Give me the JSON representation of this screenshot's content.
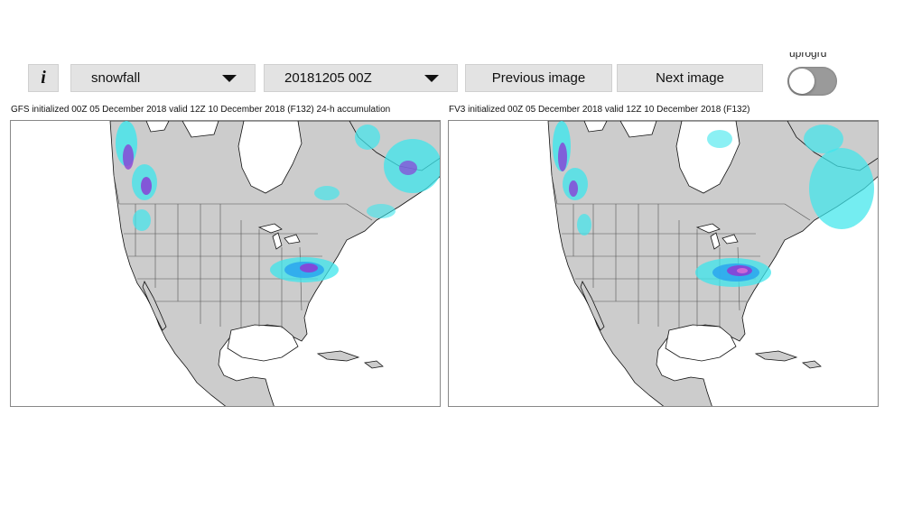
{
  "toolbar": {
    "info_label": "i",
    "variable_select": {
      "value": "snowfall"
    },
    "run_select": {
      "value": "20181205 00Z"
    },
    "previous_label": "Previous image",
    "next_label": "Next image",
    "toggle_label": "uprogrd",
    "toggle_on": false
  },
  "panels": [
    {
      "caption": "GFS initialized 00Z 05 December 2018 valid 12Z 10 December 2018 (F132) 24-h accumulation"
    },
    {
      "caption": "FV3 initialized 00Z 05 December 2018 valid 12Z 10 December 2018 (F132)"
    }
  ],
  "colors": {
    "land": "#cccccc",
    "water": "#ffffff",
    "snow_light": "#3ee6ec",
    "snow_mid": "#2aa6ee",
    "snow_heavy": "#8a3fd6",
    "snow_max": "#d46ad6"
  }
}
